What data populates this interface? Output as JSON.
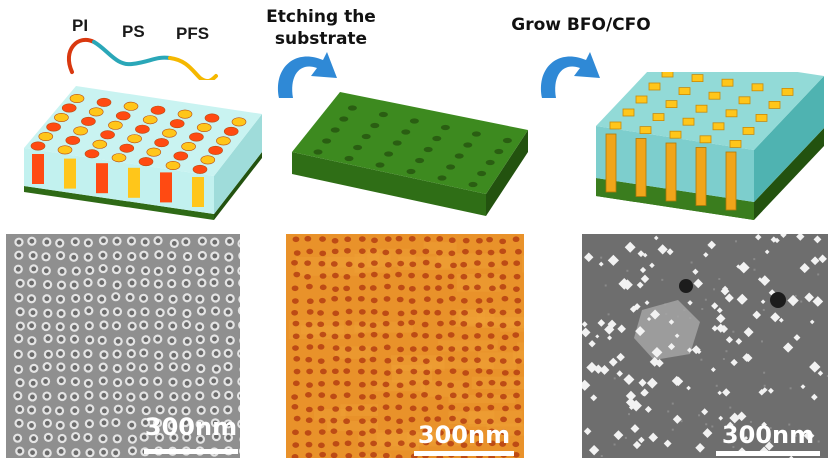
{
  "labels": {
    "pi": "PI",
    "ps": "PS",
    "pfs": "PFS",
    "step1": "Etching the substrate",
    "step2": "Grow BFO/CFO"
  },
  "scale_bars": [
    "300nm",
    "300nm",
    "300nm"
  ],
  "colors": {
    "substrate_green": "#3a7d1e",
    "matrix_cyan": "#a8e6e3",
    "pi_red": "#ff4a12",
    "pfs_yellow": "#ffc61a",
    "arrow_blue": "#2f89d6",
    "afm_orange": "#e08a1f"
  },
  "icons": [
    "curved-arrow-icon",
    "curved-arrow-icon"
  ]
}
